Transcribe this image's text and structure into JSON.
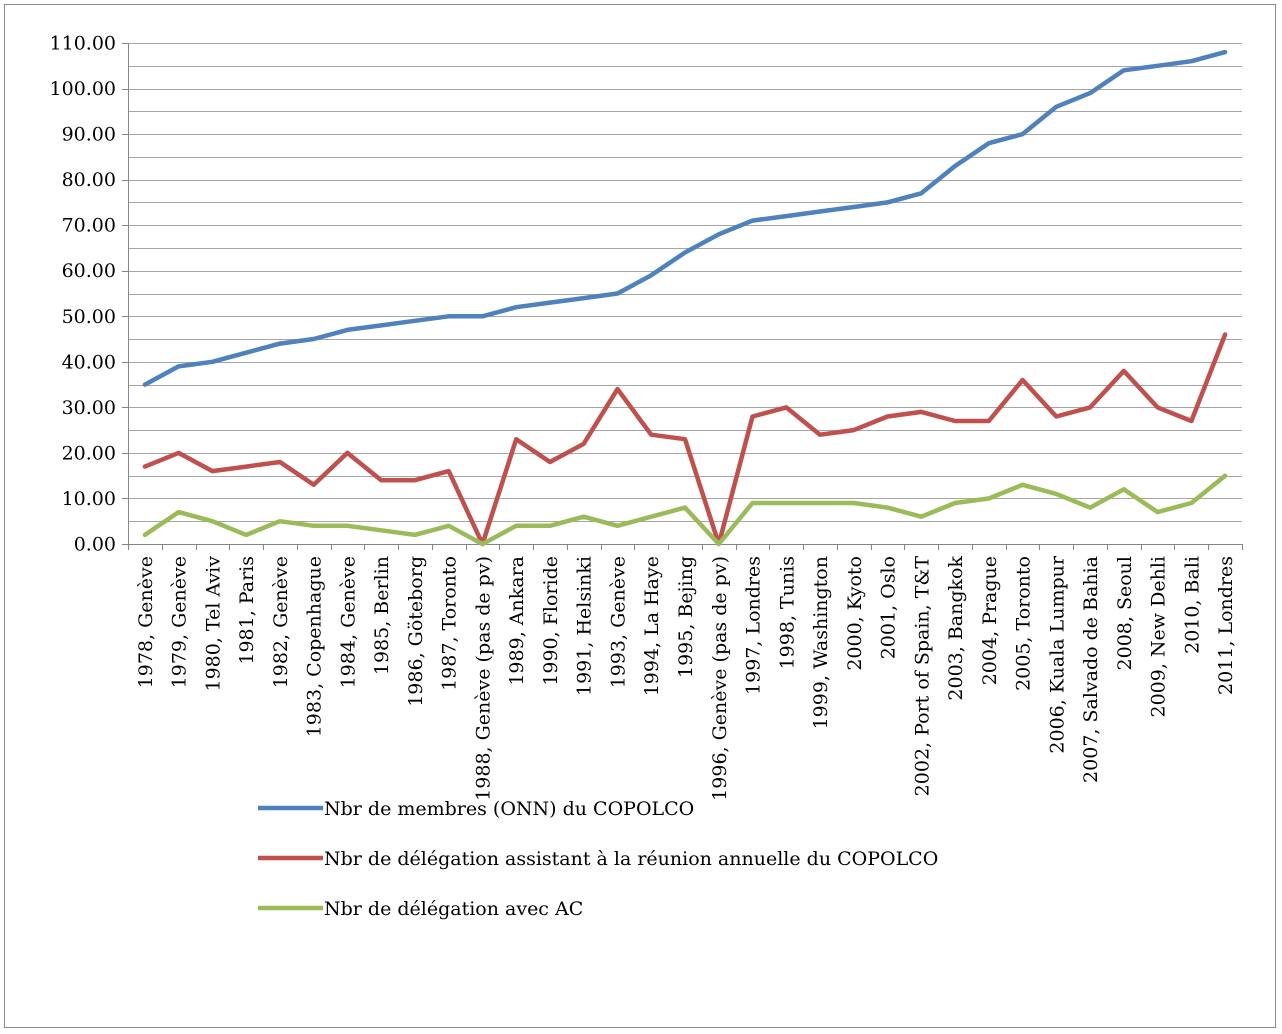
{
  "chart_data": {
    "type": "line",
    "title": "",
    "xlabel": "",
    "ylabel": "",
    "ylim": [
      0,
      110
    ],
    "y_tick_labels": [
      "0.00",
      "10.00",
      "20.00",
      "30.00",
      "40.00",
      "50.00",
      "60.00",
      "70.00",
      "80.00",
      "90.00",
      "100.00",
      "110.00"
    ],
    "y_tick_values": [
      0,
      10,
      20,
      30,
      40,
      50,
      60,
      70,
      80,
      90,
      100,
      110
    ],
    "minor_gridlines_every": 2,
    "grid": true,
    "legend_position": "bottom",
    "categories": [
      "1978, Genève",
      "1979, Genève",
      "1980, Tel Aviv",
      "1981, Paris",
      "1982, Genève",
      "1983, Copenhague",
      "1984, Genève",
      "1985, Berlin",
      "1986, Göteborg",
      "1987, Toronto",
      "1988, Genève (pas de pv)",
      "1989, Ankara",
      "1990, Floride",
      "1991, Helsinki",
      "1993, Genève",
      "1994, La Haye",
      "1995, Bejing",
      "1996, Genève (pas de pv)",
      "1997, Londres",
      "1998, Tunis",
      "1999, Washington",
      "2000, Kyoto",
      "2001, Oslo",
      "2002, Port of Spain, T&T",
      "2003, Bangkok",
      "2004, Prague",
      "2005, Toronto",
      "2006, Kuala Lumpur",
      "2007, Salvado de Bahia",
      "2008, Seoul",
      "2009, New Dehli",
      "2010, Bali",
      "2011, Londres"
    ],
    "series": [
      {
        "name": "Nbr de membres (ONN) du COPOLCO",
        "color": "#4f81bd",
        "values": [
          35,
          39,
          40,
          42,
          44,
          45,
          47,
          48,
          49,
          50,
          50,
          52,
          53,
          54,
          55,
          59,
          64,
          68,
          71,
          72,
          73,
          74,
          75,
          77,
          83,
          88,
          90,
          96,
          99,
          104,
          105,
          106,
          108
        ]
      },
      {
        "name": "Nbr de délégation assistant à la réunion annuelle du COPOLCO",
        "color": "#c0504d",
        "values": [
          17,
          20,
          16,
          17,
          18,
          13,
          20,
          14,
          14,
          16,
          0,
          23,
          18,
          22,
          34,
          24,
          23,
          0,
          28,
          30,
          24,
          25,
          28,
          29,
          27,
          27,
          36,
          28,
          30,
          38,
          30,
          27,
          46
        ]
      },
      {
        "name": "Nbr de délégation avec AC",
        "color": "#9bbb59",
        "values": [
          2,
          7,
          5,
          2,
          5,
          4,
          4,
          3,
          2,
          4,
          0,
          4,
          4,
          6,
          4,
          6,
          8,
          0,
          9,
          9,
          9,
          9,
          8,
          6,
          9,
          10,
          13,
          11,
          8,
          12,
          7,
          9,
          15
        ]
      }
    ]
  }
}
